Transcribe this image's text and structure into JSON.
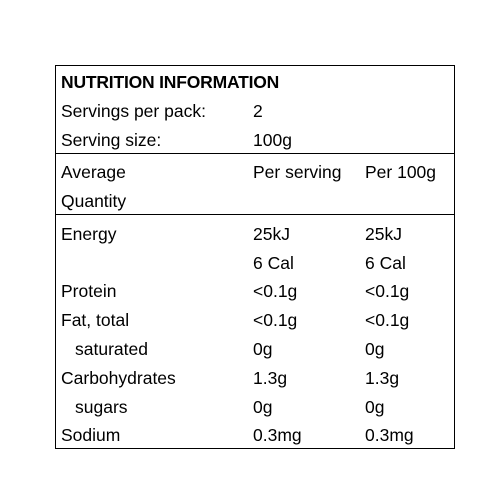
{
  "title": "NUTRITION INFORMATION",
  "servings_per_pack": {
    "label": "Servings per pack:",
    "value": "2"
  },
  "serving_size": {
    "label": "Serving size:",
    "value": "100g"
  },
  "headers": {
    "average_line1": "Average",
    "average_line2": "Quantity",
    "per_serving": "Per serving",
    "per_100g": "Per 100g"
  },
  "rows": [
    {
      "label": "Energy",
      "per_serving": "25kJ",
      "per_100g": "25kJ"
    },
    {
      "label": "",
      "per_serving": "6 Cal",
      "per_100g": "6 Cal"
    },
    {
      "label": "Protein",
      "per_serving": "<0.1g",
      "per_100g": "<0.1g"
    },
    {
      "label": "Fat, total",
      "per_serving": "<0.1g",
      "per_100g": "<0.1g"
    },
    {
      "label": "saturated",
      "per_serving": "0g",
      "per_100g": "0g"
    },
    {
      "label": "Carbohydrates",
      "per_serving": "1.3g",
      "per_100g": "1.3g"
    },
    {
      "label": "sugars",
      "per_serving": "0g",
      "per_100g": "0g"
    },
    {
      "label": "Sodium",
      "per_serving": "0.3mg",
      "per_100g": "0.3mg"
    }
  ]
}
